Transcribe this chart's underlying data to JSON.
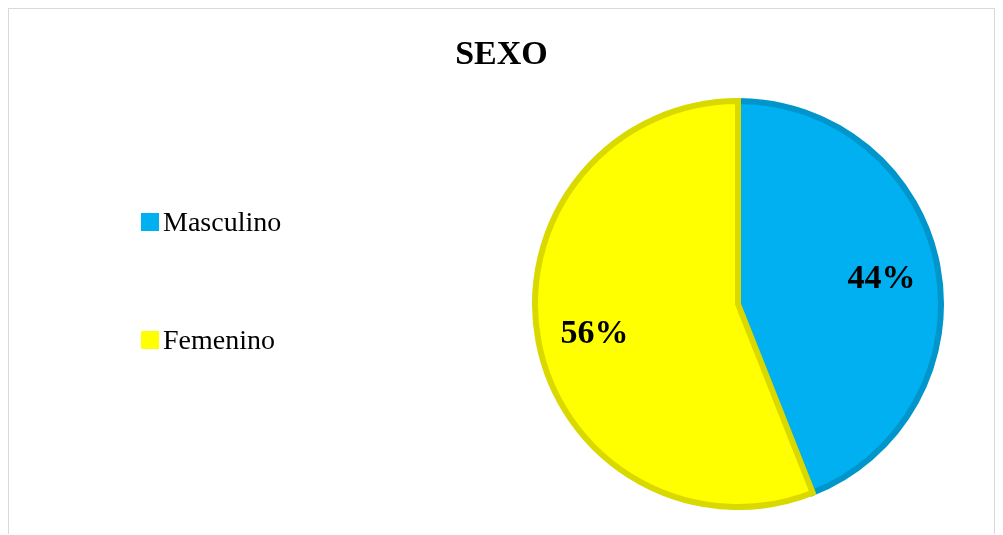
{
  "chart_data": {
    "type": "pie",
    "title": "SEXO",
    "categories": [
      "Masculino",
      "Femenino"
    ],
    "values": [
      44,
      56
    ],
    "colors": [
      "#00b0f0",
      "#ffff00"
    ],
    "value_labels": [
      "44%",
      "56%"
    ],
    "legend": "left"
  }
}
